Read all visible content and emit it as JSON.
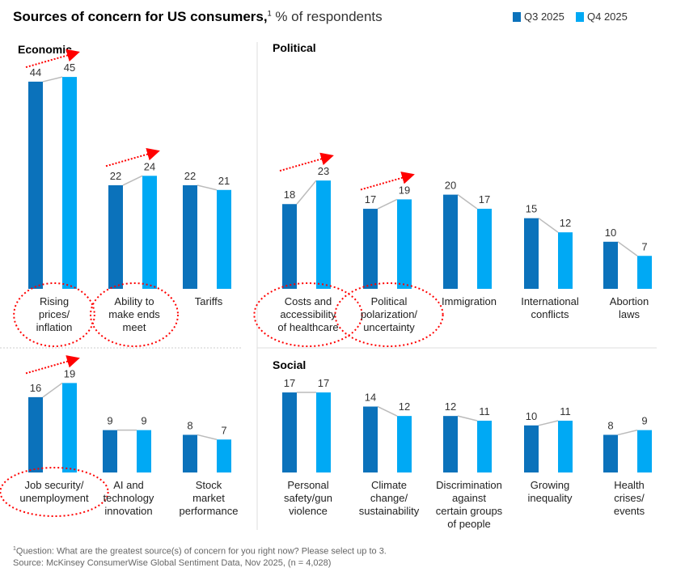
{
  "title": {
    "bold": "Sources of concern for US consumers,",
    "sup": "1",
    "subtitle": "% of respondents"
  },
  "legend": [
    {
      "label": "Q3 2025",
      "color": "#0b72bb"
    },
    {
      "label": "Q4 2025",
      "color": "#00a9f4"
    }
  ],
  "footnote": {
    "question": "Question: What are the greatest source(s) of concern for you right now? Please select up to 3.",
    "source": "Source: McKinsey ConsumerWise Global Sentiment Data, Nov 2025, (n = 4,028)"
  },
  "chart_data": [
    {
      "type": "bar",
      "title": "Economic",
      "series": [
        {
          "name": "Q3 2025"
        },
        {
          "name": "Q4 2025"
        }
      ],
      "categories": [
        {
          "label": [
            "Rising",
            "prices/",
            "inflation"
          ],
          "values": [
            44,
            45
          ],
          "highlighted": true
        },
        {
          "label": [
            "Ability to",
            "make ends",
            "meet"
          ],
          "values": [
            22,
            24
          ],
          "highlighted": true
        },
        {
          "label": [
            "Tariffs"
          ],
          "values": [
            22,
            21
          ],
          "highlighted": false
        }
      ]
    },
    {
      "type": "bar",
      "title": "Political",
      "series": [
        {
          "name": "Q3 2025"
        },
        {
          "name": "Q4 2025"
        }
      ],
      "categories": [
        {
          "label": [
            "Costs and",
            "accessibility",
            "of healthcare"
          ],
          "values": [
            18,
            23
          ],
          "highlighted": true
        },
        {
          "label": [
            "Political",
            "polarization/",
            "uncertainty"
          ],
          "values": [
            17,
            19
          ],
          "highlighted": true
        },
        {
          "label": [
            "Immigration"
          ],
          "values": [
            20,
            17
          ],
          "highlighted": false
        },
        {
          "label": [
            "International",
            "conflicts"
          ],
          "values": [
            15,
            12
          ],
          "highlighted": false
        },
        {
          "label": [
            "Abortion",
            "laws"
          ],
          "values": [
            10,
            7
          ],
          "highlighted": false
        }
      ]
    },
    {
      "type": "bar",
      "title": "",
      "series": [
        {
          "name": "Q3 2025"
        },
        {
          "name": "Q4 2025"
        }
      ],
      "categories": [
        {
          "label": [
            "Job security/",
            "unemployment"
          ],
          "values": [
            16,
            19
          ],
          "highlighted": true
        },
        {
          "label": [
            "AI and",
            "technology",
            "innovation"
          ],
          "values": [
            9,
            9
          ],
          "highlighted": false
        },
        {
          "label": [
            "Stock",
            "market",
            "performance"
          ],
          "values": [
            8,
            7
          ],
          "highlighted": false
        }
      ]
    },
    {
      "type": "bar",
      "title": "Social",
      "series": [
        {
          "name": "Q3 2025"
        },
        {
          "name": "Q4 2025"
        }
      ],
      "categories": [
        {
          "label": [
            "Personal",
            "safety/gun",
            "violence"
          ],
          "values": [
            17,
            17
          ],
          "highlighted": false
        },
        {
          "label": [
            "Climate",
            "change/",
            "sustainability"
          ],
          "values": [
            14,
            12
          ],
          "highlighted": false
        },
        {
          "label": [
            "Discrimination",
            "against",
            "certain groups",
            "of people"
          ],
          "values": [
            12,
            11
          ],
          "highlighted": false
        },
        {
          "label": [
            "Growing",
            "inequality"
          ],
          "values": [
            10,
            11
          ],
          "highlighted": false
        },
        {
          "label": [
            "Health",
            "crises/",
            "events"
          ],
          "values": [
            8,
            9
          ],
          "highlighted": false
        }
      ]
    }
  ]
}
